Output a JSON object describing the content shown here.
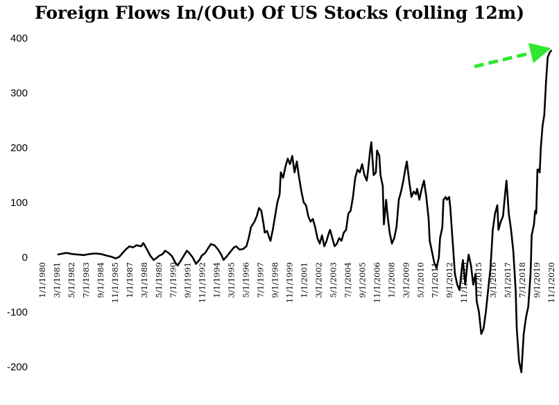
{
  "chart_data": {
    "type": "line",
    "title": "Foreign Flows In/(Out) Of US Stocks (rolling 12m)",
    "xlabel": "",
    "ylabel": "",
    "ylim": [
      -230,
      400
    ],
    "yticks": [
      400,
      300,
      200,
      100,
      0,
      -100,
      -200
    ],
    "x_tick_labels": [
      "1/1/1980",
      "3/1/1981",
      "5/1/1982",
      "7/1/1983",
      "9/1/1984",
      "11/1/1985",
      "1/1/1987",
      "3/1/1988",
      "5/1/1989",
      "7/1/1990",
      "9/1/1991",
      "11/1/1992",
      "1/1/1994",
      "3/1/1995",
      "5/1/1996",
      "7/1/1997",
      "9/1/1998",
      "11/1/1999",
      "1/1/2001",
      "3/1/2002",
      "5/1/2003",
      "7/1/2004",
      "9/1/2005",
      "11/1/2006",
      "1/1/2008",
      "3/1/2009",
      "5/1/2010",
      "7/1/2011",
      "9/1/2012",
      "11/1/2013",
      "1/1/2015",
      "3/1/2016",
      "5/1/2017",
      "7/1/2018",
      "9/1/2019",
      "11/1/2020"
    ],
    "grid": false,
    "line_color": "#000000",
    "annotation_arrow_color": "#2ee82e",
    "series": [
      {
        "values": [
          [
            1980.5,
            5
          ],
          [
            1981.0,
            7
          ],
          [
            1981.3,
            8
          ],
          [
            1981.8,
            6
          ],
          [
            1982.3,
            5
          ],
          [
            1982.8,
            4
          ],
          [
            1983.3,
            6
          ],
          [
            1983.8,
            7
          ],
          [
            1984.3,
            6
          ],
          [
            1984.8,
            3
          ],
          [
            1985.2,
            1
          ],
          [
            1985.6,
            -2
          ],
          [
            1985.9,
            1
          ],
          [
            1986.2,
            8
          ],
          [
            1986.5,
            15
          ],
          [
            1986.8,
            20
          ],
          [
            1987.1,
            18
          ],
          [
            1987.4,
            22
          ],
          [
            1987.8,
            20
          ],
          [
            1988.0,
            26
          ],
          [
            1988.3,
            15
          ],
          [
            1988.6,
            3
          ],
          [
            1988.9,
            -5
          ],
          [
            1989.1,
            -2
          ],
          [
            1989.4,
            3
          ],
          [
            1989.7,
            6
          ],
          [
            1989.9,
            12
          ],
          [
            1990.2,
            8
          ],
          [
            1990.5,
            2
          ],
          [
            1990.8,
            -10
          ],
          [
            1991.0,
            -15
          ],
          [
            1991.3,
            -5
          ],
          [
            1991.6,
            5
          ],
          [
            1991.8,
            12
          ],
          [
            1992.0,
            8
          ],
          [
            1992.3,
            0
          ],
          [
            1992.6,
            -12
          ],
          [
            1992.9,
            -5
          ],
          [
            1993.1,
            3
          ],
          [
            1993.4,
            8
          ],
          [
            1993.7,
            18
          ],
          [
            1993.9,
            24
          ],
          [
            1994.2,
            22
          ],
          [
            1994.5,
            15
          ],
          [
            1994.8,
            5
          ],
          [
            1995.0,
            -5
          ],
          [
            1995.3,
            2
          ],
          [
            1995.6,
            10
          ],
          [
            1995.9,
            18
          ],
          [
            1996.1,
            20
          ],
          [
            1996.4,
            14
          ],
          [
            1996.7,
            15
          ],
          [
            1997.0,
            20
          ],
          [
            1997.2,
            35
          ],
          [
            1997.4,
            55
          ],
          [
            1997.7,
            65
          ],
          [
            1997.9,
            75
          ],
          [
            1998.1,
            90
          ],
          [
            1998.3,
            85
          ],
          [
            1998.5,
            60
          ],
          [
            1998.6,
            45
          ],
          [
            1998.8,
            48
          ],
          [
            1999.0,
            35
          ],
          [
            1999.1,
            30
          ],
          [
            1999.3,
            50
          ],
          [
            1999.5,
            75
          ],
          [
            1999.7,
            100
          ],
          [
            1999.9,
            115
          ],
          [
            2000.0,
            155
          ],
          [
            2000.2,
            145
          ],
          [
            2000.4,
            165
          ],
          [
            2000.6,
            180
          ],
          [
            2000.8,
            170
          ],
          [
            2001.0,
            185
          ],
          [
            2001.2,
            155
          ],
          [
            2001.4,
            175
          ],
          [
            2001.6,
            145
          ],
          [
            2001.8,
            120
          ],
          [
            2002.0,
            100
          ],
          [
            2002.2,
            95
          ],
          [
            2002.4,
            75
          ],
          [
            2002.6,
            65
          ],
          [
            2002.8,
            70
          ],
          [
            2003.0,
            55
          ],
          [
            2003.2,
            35
          ],
          [
            2003.4,
            25
          ],
          [
            2003.6,
            40
          ],
          [
            2003.8,
            20
          ],
          [
            2004.0,
            30
          ],
          [
            2004.2,
            45
          ],
          [
            2004.3,
            50
          ],
          [
            2004.5,
            35
          ],
          [
            2004.7,
            20
          ],
          [
            2004.9,
            25
          ],
          [
            2005.1,
            35
          ],
          [
            2005.3,
            30
          ],
          [
            2005.5,
            45
          ],
          [
            2005.7,
            50
          ],
          [
            2005.9,
            80
          ],
          [
            2006.1,
            85
          ],
          [
            2006.3,
            110
          ],
          [
            2006.5,
            145
          ],
          [
            2006.7,
            160
          ],
          [
            2006.9,
            155
          ],
          [
            2007.1,
            170
          ],
          [
            2007.3,
            150
          ],
          [
            2007.5,
            140
          ],
          [
            2007.6,
            155
          ],
          [
            2007.8,
            195
          ],
          [
            2007.9,
            210
          ],
          [
            2008.1,
            150
          ],
          [
            2008.3,
            155
          ],
          [
            2008.4,
            195
          ],
          [
            2008.6,
            185
          ],
          [
            2008.7,
            150
          ],
          [
            2008.9,
            130
          ],
          [
            2009.0,
            60
          ],
          [
            2009.2,
            105
          ],
          [
            2009.3,
            80
          ],
          [
            2009.5,
            45
          ],
          [
            2009.7,
            25
          ],
          [
            2009.9,
            35
          ],
          [
            2010.1,
            55
          ],
          [
            2010.3,
            105
          ],
          [
            2010.5,
            120
          ],
          [
            2010.7,
            140
          ],
          [
            2010.9,
            165
          ],
          [
            2011.0,
            175
          ],
          [
            2011.2,
            140
          ],
          [
            2011.4,
            110
          ],
          [
            2011.6,
            120
          ],
          [
            2011.8,
            115
          ],
          [
            2011.9,
            125
          ],
          [
            2012.1,
            105
          ],
          [
            2012.3,
            125
          ],
          [
            2012.5,
            140
          ],
          [
            2012.7,
            110
          ],
          [
            2012.9,
            70
          ],
          [
            2013.0,
            30
          ],
          [
            2013.2,
            10
          ],
          [
            2013.4,
            -10
          ],
          [
            2013.6,
            -20
          ],
          [
            2013.8,
            0
          ],
          [
            2013.9,
            35
          ],
          [
            2014.1,
            55
          ],
          [
            2014.2,
            105
          ],
          [
            2014.4,
            110
          ],
          [
            2014.5,
            105
          ],
          [
            2014.7,
            110
          ],
          [
            2014.8,
            90
          ],
          [
            2015.0,
            30
          ],
          [
            2015.2,
            -30
          ],
          [
            2015.4,
            -50
          ],
          [
            2015.6,
            -60
          ],
          [
            2015.8,
            -20
          ],
          [
            2015.9,
            -5
          ],
          [
            2016.1,
            -50
          ],
          [
            2016.3,
            -10
          ],
          [
            2016.4,
            5
          ],
          [
            2016.6,
            -15
          ],
          [
            2016.8,
            -50
          ],
          [
            2017.0,
            -30
          ],
          [
            2017.1,
            -80
          ],
          [
            2017.3,
            -100
          ],
          [
            2017.5,
            -140
          ],
          [
            2017.7,
            -130
          ],
          [
            2017.9,
            -100
          ],
          [
            2018.1,
            -60
          ],
          [
            2018.3,
            -20
          ],
          [
            2018.5,
            50
          ],
          [
            2018.7,
            80
          ],
          [
            2018.9,
            95
          ],
          [
            2019.0,
            50
          ],
          [
            2019.2,
            65
          ],
          [
            2019.4,
            75
          ],
          [
            2019.6,
            120
          ],
          [
            2019.7,
            140
          ],
          [
            2019.9,
            80
          ],
          [
            2020.1,
            50
          ],
          [
            2020.3,
            10
          ],
          [
            2020.5,
            -60
          ],
          [
            2020.6,
            -130
          ],
          [
            2020.8,
            -190
          ],
          [
            2021.0,
            -210
          ],
          [
            2021.2,
            -140
          ],
          [
            2021.4,
            -110
          ],
          [
            2021.6,
            -90
          ],
          [
            2021.8,
            -30
          ],
          [
            2021.9,
            40
          ],
          [
            2022.1,
            60
          ],
          [
            2022.2,
            85
          ],
          [
            2022.3,
            80
          ],
          [
            2022.4,
            160
          ],
          [
            2022.5,
            160
          ],
          [
            2022.6,
            155
          ],
          [
            2022.7,
            200
          ],
          [
            2022.85,
            240
          ],
          [
            2023.0,
            260
          ],
          [
            2023.15,
            320
          ],
          [
            2023.3,
            365
          ],
          [
            2023.5,
            375
          ],
          [
            2023.65,
            378
          ]
        ]
      }
    ]
  }
}
